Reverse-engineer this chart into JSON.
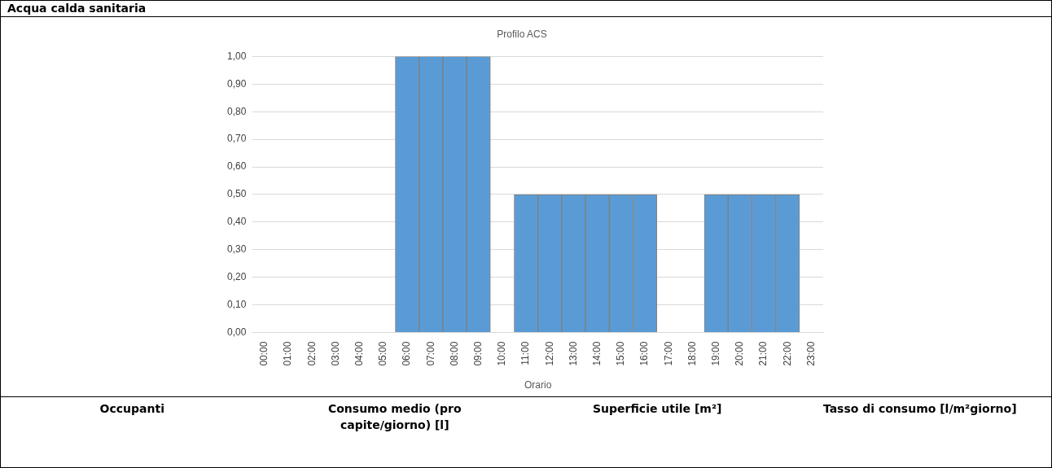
{
  "chart_data": {
    "type": "bar",
    "title": "Profilo ACS",
    "xlabel": "Orario",
    "categories": [
      "00:00",
      "01:00",
      "02:00",
      "03:00",
      "04:00",
      "05:00",
      "06:00",
      "07:00",
      "08:00",
      "09:00",
      "10:00",
      "11:00",
      "12:00",
      "13:00",
      "14:00",
      "15:00",
      "16:00",
      "17:00",
      "18:00",
      "19:00",
      "20:00",
      "21:00",
      "22:00",
      "23:00"
    ],
    "values": [
      0,
      0,
      0,
      0,
      0,
      0,
      1,
      1,
      1,
      1,
      0,
      0.5,
      0.5,
      0.5,
      0.5,
      0.5,
      0.5,
      0,
      0,
      0.5,
      0.5,
      0.5,
      0.5,
      0
    ],
    "color": "#5b9bd5",
    "ylim": [
      0,
      1
    ],
    "yticks": [
      {
        "value": 0,
        "label": "0,00"
      },
      {
        "value": 0.1,
        "label": "0,10"
      },
      {
        "value": 0.2,
        "label": "0,20"
      },
      {
        "value": 0.3,
        "label": "0,30"
      },
      {
        "value": 0.4,
        "label": "0,40"
      },
      {
        "value": 0.5,
        "label": "0,50"
      },
      {
        "value": 0.6,
        "label": "0,60"
      },
      {
        "value": 0.7,
        "label": "0,70"
      },
      {
        "value": 0.8,
        "label": "0,80"
      },
      {
        "value": 0.9,
        "label": "0,90"
      },
      {
        "value": 1,
        "label": "1,00"
      }
    ],
    "grid": "y",
    "annotations": [
      "Acqua calda sanitaria",
      "Occupanti",
      "Consumo medio (pro capite/giorno) [l]",
      "Superficie utile [m²]",
      "Tasso di consumo [l/m²giorno]"
    ]
  }
}
